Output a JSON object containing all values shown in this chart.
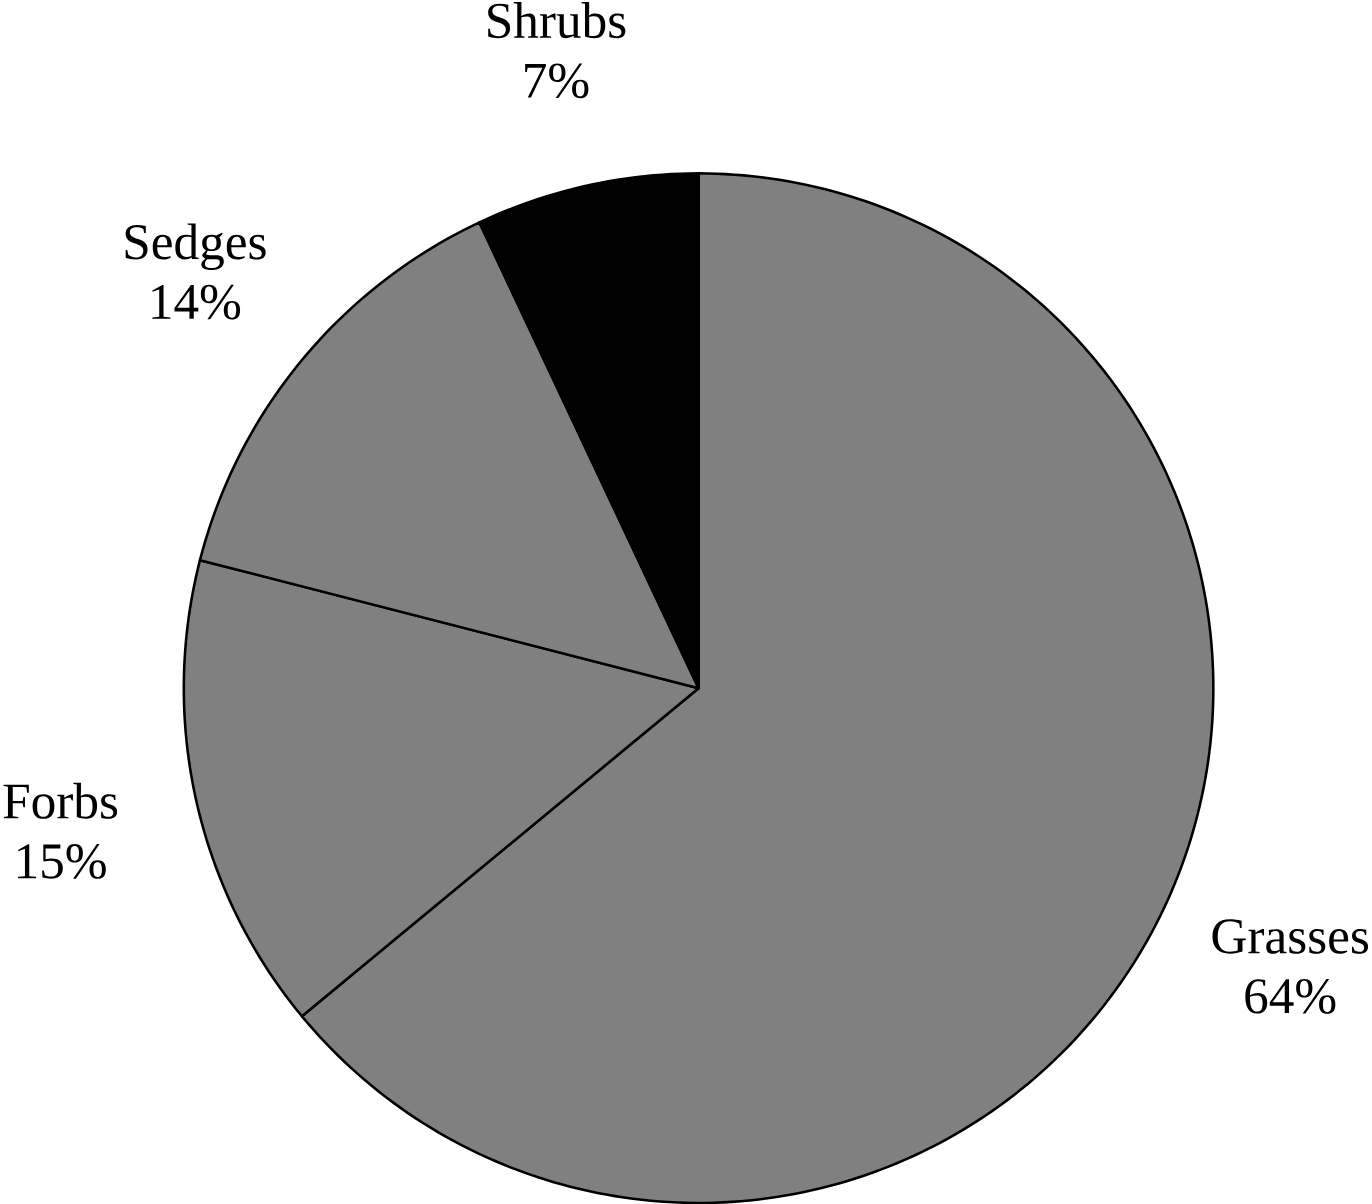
{
  "chart_data": {
    "type": "pie",
    "categories": [
      "Grasses",
      "Forbs",
      "Sedges",
      "Shrubs"
    ],
    "values": [
      64,
      15,
      14,
      7
    ],
    "value_labels": [
      "64%",
      "15%",
      "14%",
      "7%"
    ],
    "colors": [
      "#808080",
      "#808080",
      "#808080",
      "#000000"
    ]
  }
}
